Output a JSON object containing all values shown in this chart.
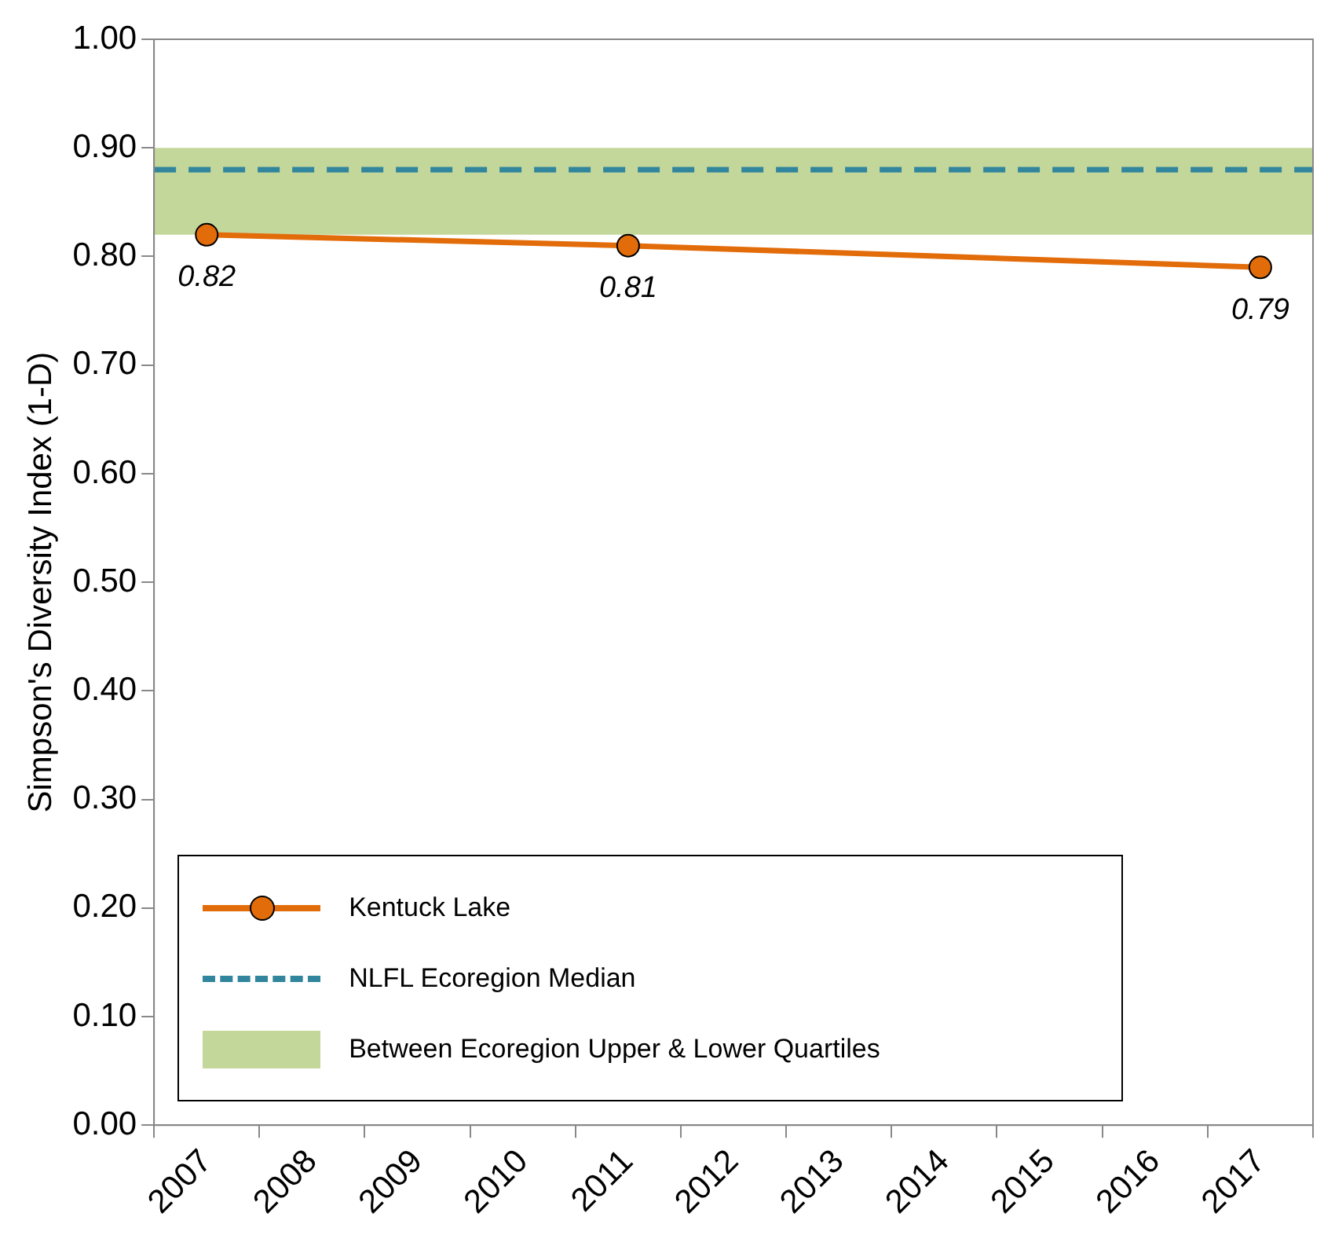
{
  "chart_data": {
    "type": "line",
    "ylabel": "Simpson's Diversity Index (1-D)",
    "categories": [
      "2007",
      "2008",
      "2009",
      "2010",
      "2011",
      "2012",
      "2013",
      "2014",
      "2015",
      "2016",
      "2017"
    ],
    "series": [
      {
        "name": "Kentuck Lake",
        "color": "#e36c0a",
        "values": [
          0.82,
          null,
          null,
          null,
          0.81,
          null,
          null,
          null,
          null,
          null,
          0.79
        ]
      }
    ],
    "ylim": [
      0,
      1
    ],
    "yticks": [
      {
        "value": 0,
        "label": "0.00"
      },
      {
        "value": 0.1,
        "label": "0.10"
      },
      {
        "value": 0.2,
        "label": "0.20"
      },
      {
        "value": 0.3,
        "label": "0.30"
      },
      {
        "value": 0.4,
        "label": "0.40"
      },
      {
        "value": 0.5,
        "label": "0.50"
      },
      {
        "value": 0.6,
        "label": "0.60"
      },
      {
        "value": 0.7,
        "label": "0.70"
      },
      {
        "value": 0.8,
        "label": "0.80"
      },
      {
        "value": 0.9,
        "label": "0.90"
      },
      {
        "value": 1,
        "label": "1.00"
      }
    ],
    "ref_lines": [
      {
        "axis": "y",
        "value": 0.88,
        "label": "NLFL Ecoregion Median",
        "color": "#31859c",
        "line_style": "dashed"
      }
    ],
    "bands": [
      {
        "axis": "y",
        "from": 0.82,
        "to": 0.9,
        "label": "Between Ecoregion Upper & Lower Quartiles",
        "color": "#c4d79b"
      }
    ],
    "data_labels": true,
    "marker": "circle",
    "line_style": "solid",
    "grid": false,
    "legend": "bottom left"
  }
}
